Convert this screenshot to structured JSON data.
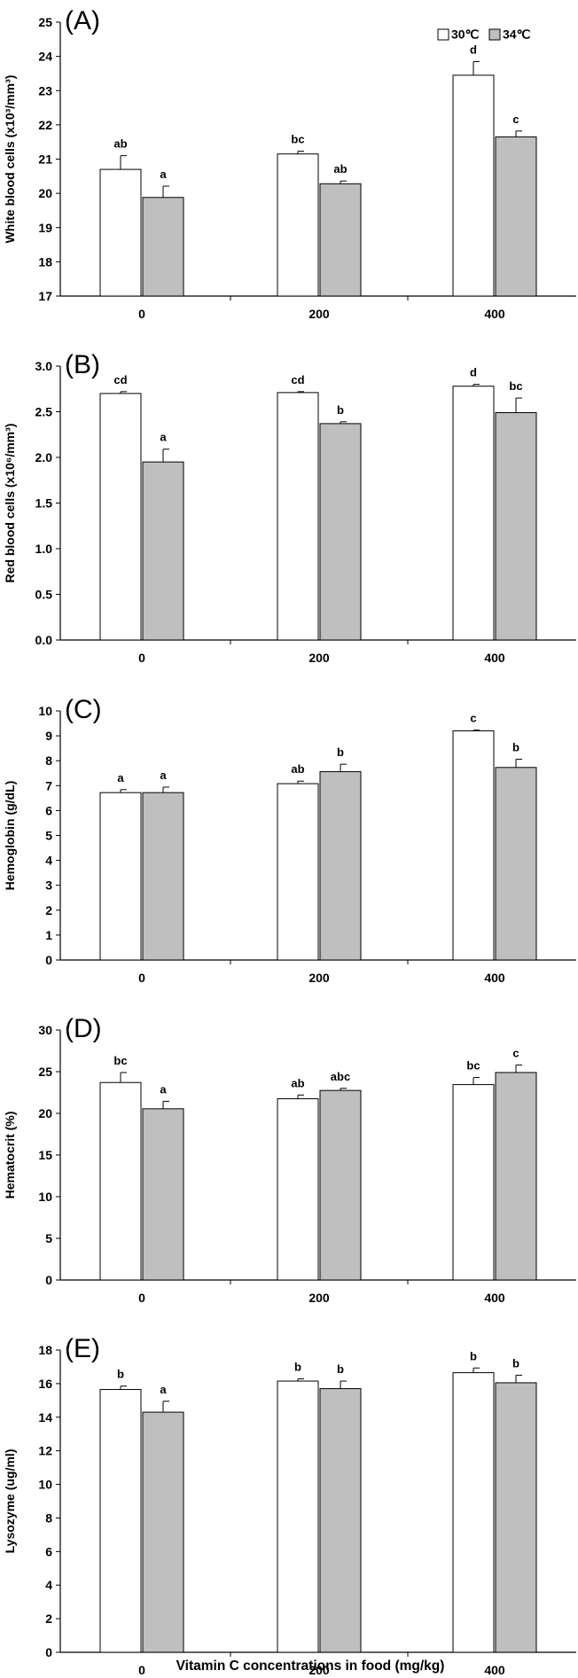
{
  "figure": {
    "xlabel": "Vitamin C concentrations in food (mg/kg)"
  },
  "legend": {
    "entries": [
      {
        "label": "30℃",
        "color": "#ffffff"
      },
      {
        "label": "34℃",
        "color": "#bfbfbf"
      }
    ],
    "placement": "top-right"
  },
  "chart_data": [
    {
      "type": "bar",
      "panel": "(A)",
      "ylabel": "White blood cells (x10³/mm³)",
      "categories": [
        "0",
        "200",
        "400"
      ],
      "ylim": [
        17,
        25
      ],
      "yticks": [
        "17",
        "18",
        "19",
        "20",
        "21",
        "22",
        "23",
        "24",
        "25"
      ],
      "series": [
        {
          "name": "30℃",
          "values": [
            20.7,
            21.15,
            23.45
          ],
          "errors": [
            0.4,
            0.08,
            0.4
          ],
          "labels": [
            "ab",
            "bc",
            "d"
          ]
        },
        {
          "name": "34℃",
          "values": [
            19.88,
            20.28,
            21.65
          ],
          "errors": [
            0.33,
            0.08,
            0.17
          ],
          "labels": [
            "a",
            "ab",
            "c"
          ]
        }
      ]
    },
    {
      "type": "bar",
      "panel": "(B)",
      "ylabel": "Red blood cells (x10⁶/mm³)",
      "categories": [
        "0",
        "200",
        "400"
      ],
      "ylim": [
        0,
        3
      ],
      "yticks": [
        "0.0",
        "0.5",
        "1.0",
        "1.5",
        "2.0",
        "2.5",
        "3.0"
      ],
      "series": [
        {
          "name": "30℃",
          "values": [
            2.7,
            2.71,
            2.78
          ],
          "errors": [
            0.02,
            0.01,
            0.02
          ],
          "labels": [
            "cd",
            "cd",
            "d"
          ]
        },
        {
          "name": "34℃",
          "values": [
            1.95,
            2.37,
            2.49
          ],
          "errors": [
            0.14,
            0.02,
            0.16
          ],
          "labels": [
            "a",
            "b",
            "bc"
          ]
        }
      ]
    },
    {
      "type": "bar",
      "panel": "(C)",
      "ylabel": "Hemoglobin (g/dL)",
      "categories": [
        "0",
        "200",
        "400"
      ],
      "ylim": [
        0,
        10
      ],
      "yticks": [
        "0",
        "1",
        "2",
        "3",
        "4",
        "5",
        "6",
        "7",
        "8",
        "9",
        "10"
      ],
      "series": [
        {
          "name": "30℃",
          "values": [
            6.72,
            7.08,
            9.2
          ],
          "errors": [
            0.12,
            0.1,
            0.03
          ],
          "labels": [
            "a",
            "ab",
            "c"
          ]
        },
        {
          "name": "34℃",
          "values": [
            6.72,
            7.56,
            7.73
          ],
          "errors": [
            0.22,
            0.3,
            0.33
          ],
          "labels": [
            "a",
            "b",
            "b"
          ]
        }
      ]
    },
    {
      "type": "bar",
      "panel": "(D)",
      "ylabel": "Hematocrit (%)",
      "categories": [
        "0",
        "200",
        "400"
      ],
      "ylim": [
        0,
        30
      ],
      "yticks": [
        "0",
        "5",
        "10",
        "15",
        "20",
        "25",
        "30"
      ],
      "series": [
        {
          "name": "30℃",
          "values": [
            23.7,
            21.75,
            23.45
          ],
          "errors": [
            1.2,
            0.45,
            0.85
          ],
          "labels": [
            "bc",
            "ab",
            "bc"
          ]
        },
        {
          "name": "34℃",
          "values": [
            20.55,
            22.75,
            24.9
          ],
          "errors": [
            0.9,
            0.25,
            0.9
          ],
          "labels": [
            "a",
            "abc",
            "c"
          ]
        }
      ]
    },
    {
      "type": "bar",
      "panel": "(E)",
      "ylabel": "Lysozyme (ug/ml)",
      "categories": [
        "0",
        "200",
        "400"
      ],
      "ylim": [
        0,
        18
      ],
      "yticks": [
        "0",
        "2",
        "4",
        "6",
        "8",
        "10",
        "12",
        "14",
        "16",
        "18"
      ],
      "series": [
        {
          "name": "30℃",
          "values": [
            15.65,
            16.15,
            16.65
          ],
          "errors": [
            0.2,
            0.13,
            0.28
          ],
          "labels": [
            "b",
            "b",
            "b"
          ]
        },
        {
          "name": "34℃",
          "values": [
            14.3,
            15.7,
            16.05
          ],
          "errors": [
            0.65,
            0.45,
            0.45
          ],
          "labels": [
            "a",
            "b",
            "b"
          ]
        }
      ]
    }
  ]
}
